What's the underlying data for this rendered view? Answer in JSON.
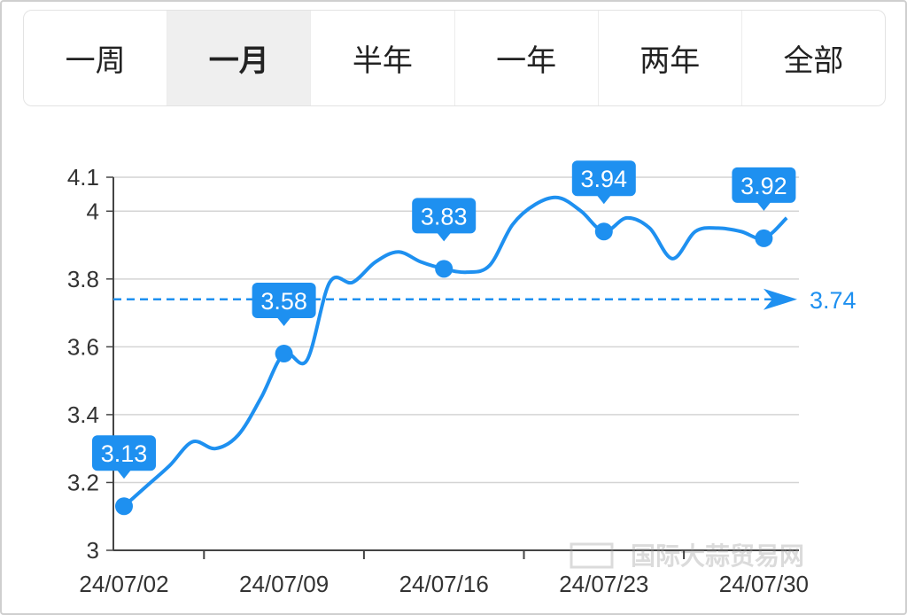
{
  "tabs": [
    "一周",
    "一月",
    "半年",
    "一年",
    "两年",
    "全部"
  ],
  "active_tab": 1,
  "chart_data": {
    "type": "line",
    "x": [
      "24/07/02",
      null,
      null,
      null,
      null,
      null,
      null,
      "24/07/09",
      null,
      null,
      null,
      null,
      null,
      null,
      "24/07/16",
      null,
      null,
      null,
      null,
      null,
      null,
      "24/07/23",
      null,
      null,
      null,
      null,
      null,
      null,
      "24/07/30",
      null
    ],
    "values": [
      3.13,
      3.19,
      3.25,
      3.32,
      3.3,
      3.34,
      3.45,
      3.58,
      3.56,
      3.79,
      3.79,
      3.85,
      3.88,
      3.85,
      3.83,
      3.82,
      3.84,
      3.96,
      4.02,
      4.04,
      4.0,
      3.94,
      3.98,
      3.95,
      3.86,
      3.94,
      3.95,
      3.94,
      3.92,
      3.98
    ],
    "color": "#1e90f0",
    "ylim": [
      3,
      4.1
    ],
    "yticks": [
      3,
      3.2,
      3.4,
      3.6,
      3.8,
      4,
      4.1
    ],
    "grid": true,
    "reference_line": {
      "value": 3.74,
      "color": "#1e90f0"
    },
    "watermark": "国际大蒜贸易网"
  }
}
